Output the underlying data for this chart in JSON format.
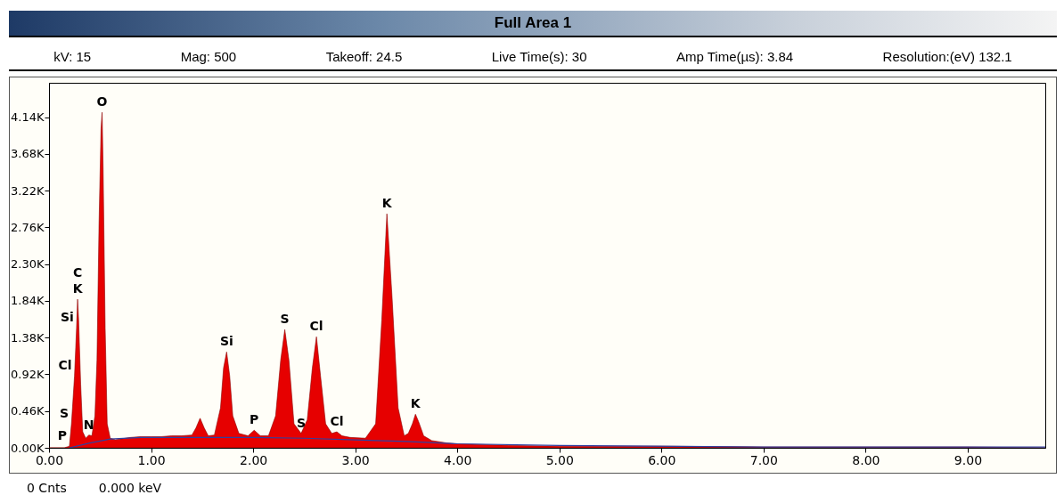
{
  "chart_data": {
    "type": "area",
    "title": "Full Area 1",
    "x": [
      0,
      0.15,
      0.2,
      0.22,
      0.25,
      0.27,
      0.28,
      0.29,
      0.31,
      0.33,
      0.36,
      0.39,
      0.42,
      0.45,
      0.47,
      0.49,
      0.51,
      0.52,
      0.53,
      0.55,
      0.57,
      0.6,
      0.65,
      0.8,
      0.9,
      1.0,
      1.1,
      1.2,
      1.3,
      1.4,
      1.44,
      1.48,
      1.52,
      1.56,
      1.62,
      1.68,
      1.71,
      1.74,
      1.77,
      1.8,
      1.86,
      1.95,
      2.01,
      2.07,
      2.15,
      2.22,
      2.27,
      2.31,
      2.35,
      2.4,
      2.47,
      2.53,
      2.58,
      2.62,
      2.66,
      2.71,
      2.77,
      2.82,
      2.87,
      2.95,
      3.1,
      3.2,
      3.26,
      3.31,
      3.36,
      3.42,
      3.48,
      3.52,
      3.56,
      3.59,
      3.62,
      3.67,
      3.75,
      3.9,
      4.0,
      4.5,
      5.0,
      6.0,
      7.0,
      8.0,
      9.0,
      9.76
    ],
    "series": [
      {
        "color": "#e60000",
        "values": [
          0,
          0,
          20,
          300,
          900,
          1500,
          1860,
          1600,
          800,
          200,
          120,
          160,
          150,
          400,
          1100,
          2800,
          4000,
          4200,
          3500,
          1500,
          300,
          120,
          100,
          130,
          140,
          140,
          140,
          150,
          150,
          160,
          250,
          370,
          250,
          150,
          160,
          500,
          1000,
          1200,
          900,
          400,
          180,
          150,
          220,
          150,
          150,
          400,
          1100,
          1480,
          1100,
          300,
          180,
          350,
          1000,
          1390,
          900,
          300,
          180,
          200,
          150,
          130,
          120,
          300,
          1600,
          2930,
          1900,
          500,
          150,
          180,
          300,
          420,
          330,
          150,
          90,
          60,
          50,
          30,
          20,
          20,
          10,
          10,
          10,
          0
        ]
      },
      {
        "type": "line",
        "color": "#3040a0",
        "x": [
          0.2,
          0.4,
          0.6,
          0.9,
          1.5,
          2.0,
          2.5,
          3.0,
          3.5,
          4.0,
          5.0,
          7.0,
          9.76
        ],
        "values": [
          0,
          60,
          110,
          130,
          130,
          130,
          120,
          100,
          80,
          50,
          30,
          10,
          10
        ]
      }
    ],
    "xlim": [
      0,
      9.76
    ],
    "xticks": [
      {
        "value": 0,
        "label": "0.00"
      },
      {
        "value": 1,
        "label": "1.00"
      },
      {
        "value": 2,
        "label": "2.00"
      },
      {
        "value": 3,
        "label": "3.00"
      },
      {
        "value": 4,
        "label": "4.00"
      },
      {
        "value": 5,
        "label": "5.00"
      },
      {
        "value": 6,
        "label": "6.00"
      },
      {
        "value": 7,
        "label": "7.00"
      },
      {
        "value": 8,
        "label": "8.00"
      },
      {
        "value": 9,
        "label": "9.00"
      }
    ],
    "ylim": [
      0,
      4570
    ],
    "yticks": [
      {
        "value": 0,
        "label": "0.00K"
      },
      {
        "value": 460,
        "label": "0.46K"
      },
      {
        "value": 920,
        "label": "0.92K"
      },
      {
        "value": 1380,
        "label": "1.38K"
      },
      {
        "value": 1840,
        "label": "1.84K"
      },
      {
        "value": 2300,
        "label": "2.30K"
      },
      {
        "value": 2760,
        "label": "2.76K"
      },
      {
        "value": 3220,
        "label": "3.22K"
      },
      {
        "value": 3680,
        "label": "3.68K"
      },
      {
        "value": 4140,
        "label": "4.14K"
      }
    ],
    "grid": false,
    "annotations": [
      "kV: 15",
      "Mag: 500",
      "Takeoff: 24.5",
      "Live Time(s): 30",
      "Amp Time(µs): 3.84",
      "Resolution:(eV) 132.1",
      "0 Cnts",
      "0.000 keV",
      {
        "text": "O",
        "x": 0.52,
        "y": 4200
      },
      {
        "text": "K",
        "x": 0.28,
        "y": 1860
      },
      {
        "text": "C",
        "x": 0.28,
        "y": 1860
      },
      {
        "text": "Si",
        "x": 0.27,
        "y": 1500
      },
      {
        "text": "Cl",
        "x": 0.25,
        "y": 900
      },
      {
        "text": "S",
        "x": 0.22,
        "y": 300
      },
      {
        "text": "P",
        "x": 0.2,
        "y": 20
      },
      {
        "text": "N",
        "x": 0.39,
        "y": 160
      },
      {
        "text": "Si",
        "x": 1.74,
        "y": 1200
      },
      {
        "text": "P",
        "x": 2.01,
        "y": 220
      },
      {
        "text": "S",
        "x": 2.31,
        "y": 1480
      },
      {
        "text": "S",
        "x": 2.47,
        "y": 180
      },
      {
        "text": "Cl",
        "x": 2.62,
        "y": 1390
      },
      {
        "text": "Cl",
        "x": 2.82,
        "y": 200
      },
      {
        "text": "K",
        "x": 3.31,
        "y": 2930
      },
      {
        "text": "K",
        "x": 3.59,
        "y": 420
      }
    ]
  }
}
